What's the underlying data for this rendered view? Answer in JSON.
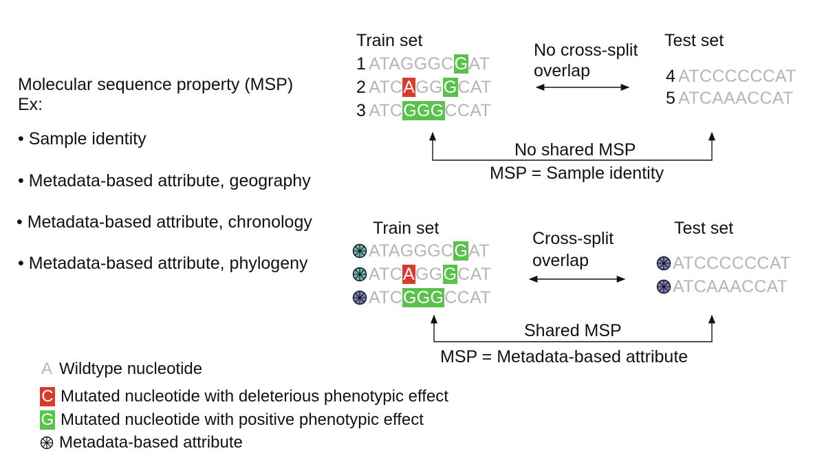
{
  "left": {
    "heading": "Molecular sequence property (MSP)",
    "ex": "Ex:",
    "bullets": [
      "• Sample identity",
      "• Metadata-based attribute, geography",
      "• Metadata-based attribute, chronology",
      "• Metadata-based attribute, phylogeny"
    ]
  },
  "top_panel": {
    "train_label": "Train set",
    "test_label": "Test set",
    "overlap_label": [
      "No cross-split",
      "overlap"
    ],
    "train_rows": [
      {
        "num": "1",
        "segments": [
          {
            "t": "ATAGGGC",
            "k": "wt"
          },
          {
            "t": "G",
            "k": "grn"
          },
          {
            "t": "AT",
            "k": "wt"
          }
        ]
      },
      {
        "num": "2",
        "segments": [
          {
            "t": "ATC",
            "k": "wt"
          },
          {
            "t": "A",
            "k": "red"
          },
          {
            "t": "GG",
            "k": "wt"
          },
          {
            "t": "G",
            "k": "grn"
          },
          {
            "t": "CAT",
            "k": "wt"
          }
        ]
      },
      {
        "num": "3",
        "segments": [
          {
            "t": "ATC",
            "k": "wt"
          },
          {
            "t": "GGG",
            "k": "grn"
          },
          {
            "t": "CCAT",
            "k": "wt"
          }
        ]
      }
    ],
    "test_rows": [
      {
        "num": "4",
        "seq": "ATCCCCCCAT"
      },
      {
        "num": "5",
        "seq": "ATCAAACCAT"
      }
    ],
    "bracket_label": "No shared MSP",
    "msp_caption": "MSP = Sample identity"
  },
  "bottom_panel": {
    "train_label": "Train set",
    "test_label": "Test set",
    "overlap_label": [
      "Cross-split",
      "overlap"
    ],
    "train_rows": [
      {
        "attr": "teal",
        "segments": [
          {
            "t": "ATAGGGC",
            "k": "wt"
          },
          {
            "t": "G",
            "k": "grn"
          },
          {
            "t": "AT",
            "k": "wt"
          }
        ]
      },
      {
        "attr": "teal",
        "segments": [
          {
            "t": "ATC",
            "k": "wt"
          },
          {
            "t": "A",
            "k": "red"
          },
          {
            "t": "GG",
            "k": "wt"
          },
          {
            "t": "G",
            "k": "grn"
          },
          {
            "t": "CAT",
            "k": "wt"
          }
        ]
      },
      {
        "attr": "purple",
        "segments": [
          {
            "t": "ATC",
            "k": "wt"
          },
          {
            "t": "GGG",
            "k": "grn"
          },
          {
            "t": "CCAT",
            "k": "wt"
          }
        ]
      }
    ],
    "test_rows": [
      {
        "attr": "purple",
        "seq": "ATCCCCCCAT"
      },
      {
        "attr": "purple",
        "seq": "ATCAAACCAT"
      }
    ],
    "bracket_label": "Shared MSP",
    "msp_caption": "MSP = Metadata-based attribute"
  },
  "legend": [
    {
      "symbol": "A",
      "kind": "wt",
      "label": "Wildtype nucleotide"
    },
    {
      "symbol": "C",
      "kind": "red",
      "label": "Mutated nucleotide with deleterious phenotypic effect"
    },
    {
      "symbol": "G",
      "kind": "grn",
      "label": "Mutated nucleotide with positive phenotypic effect"
    },
    {
      "symbol": "",
      "kind": "attr",
      "label": "Metadata-based attribute"
    }
  ],
  "colors": {
    "wildtype": "#b5b5b5",
    "deleterious": "#d93a2b",
    "positive": "#58c24a",
    "attr_teal": "#6ab9b5",
    "attr_purple": "#7b7fb8"
  }
}
